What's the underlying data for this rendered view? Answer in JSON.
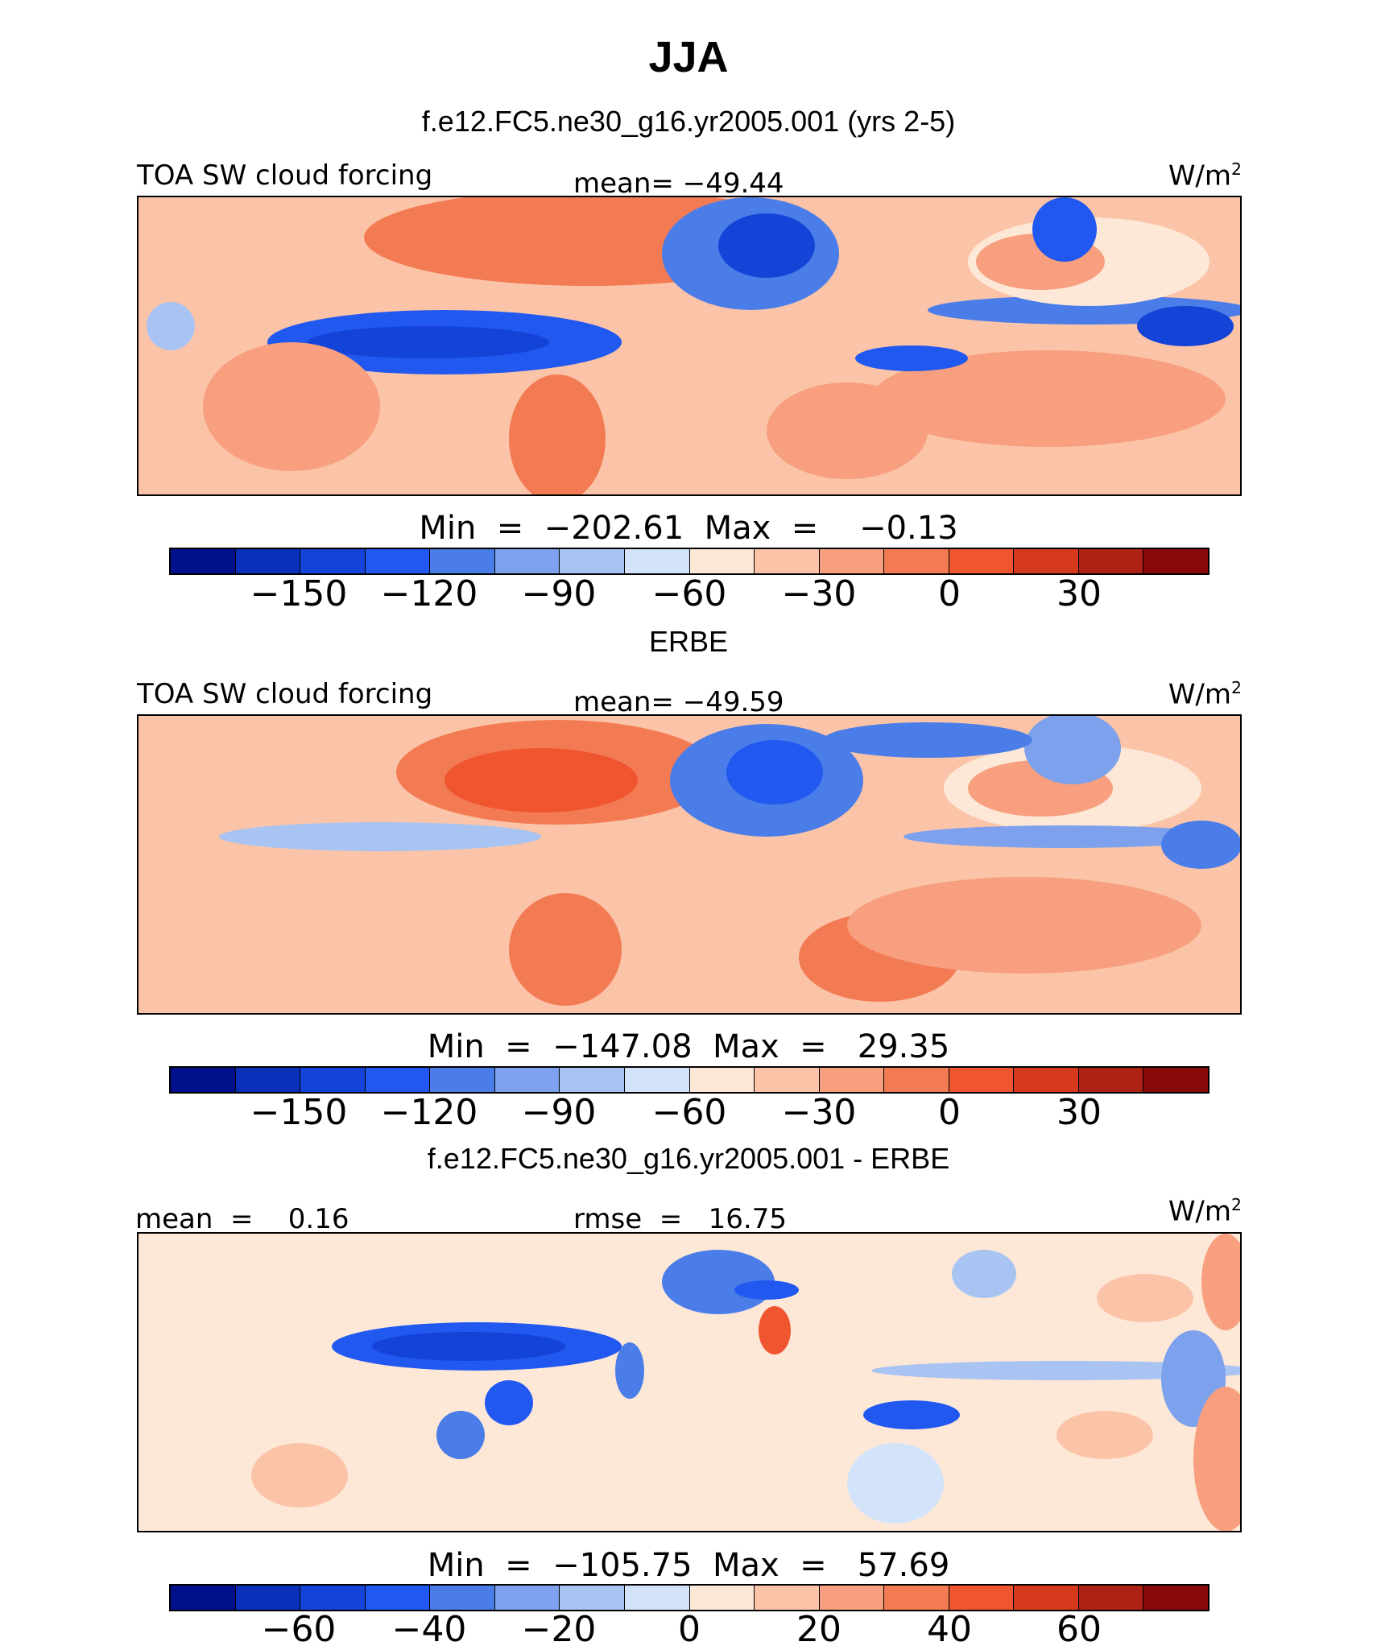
{
  "title": "JJA",
  "subtitle": "f.e12.FC5.ne30_g16.yr2005.001 (yrs 2-5)",
  "colors": {
    "main_scale": [
      "#00108c",
      "#0a2fb8",
      "#1443d8",
      "#2158f0",
      "#4b7de8",
      "#7da1ec",
      "#a9c4f2",
      "#d3e4fa",
      "#fde8d8",
      "#fbc4a8",
      "#f79f7e",
      "#f37b54",
      "#ef5630",
      "#d53a1d",
      "#ac2215",
      "#87090a"
    ],
    "diff_scale": [
      "#00108c",
      "#0a2fb8",
      "#1443d8",
      "#2158f0",
      "#4b7de8",
      "#7da1ec",
      "#a9c4f2",
      "#d3e4fa",
      "#fde8d8",
      "#fbc4a8",
      "#f79f7e",
      "#f37b54",
      "#ef5630",
      "#d53a1d",
      "#ac2215",
      "#87090a"
    ]
  },
  "panels": [
    {
      "header_left": "TOA SW cloud forcing",
      "header_mid": "mean= −49.44",
      "units": "W/m",
      "units_sup": "2",
      "minmax": "Min  =  −202.61  Max  =    −0.13",
      "ticks": [
        "−150",
        "−120",
        "−90",
        "−60",
        "−30",
        "0",
        "30"
      ]
    },
    {
      "label": "ERBE",
      "header_left": "TOA SW cloud forcing",
      "header_mid": "mean= −49.59",
      "units": "W/m",
      "units_sup": "2",
      "minmax": "Min  =  −147.08  Max  =   29.35",
      "ticks": [
        "−150",
        "−120",
        "−90",
        "−60",
        "−30",
        "0",
        "30"
      ]
    },
    {
      "label": "f.e12.FC5.ne30_g16.yr2005.001 - ERBE",
      "header_left": "mean  =    0.16",
      "header_mid": "rmse  =   16.75",
      "units": "W/m",
      "units_sup": "2",
      "minmax": "Min  =  −105.75  Max  =   57.69",
      "ticks": [
        "−60",
        "−40",
        "−20",
        "0",
        "20",
        "40",
        "60"
      ]
    }
  ]
}
